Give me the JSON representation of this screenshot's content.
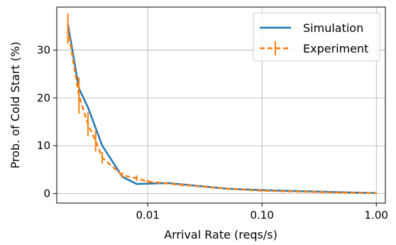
{
  "chart_data": {
    "type": "line",
    "xscale": "log",
    "xlabel": "Arrival Rate (reqs/s)",
    "ylabel": "Prob. of Cold Start (%)",
    "xlim": [
      0.0016,
      1.2
    ],
    "ylim": [
      -2,
      39
    ],
    "xticks": [
      {
        "value": 0.01,
        "label": "0.01"
      },
      {
        "value": 0.1,
        "label": "0.10"
      },
      {
        "value": 1.0,
        "label": "1.00"
      }
    ],
    "yticks": [
      {
        "value": 0,
        "label": "0"
      },
      {
        "value": 10,
        "label": "10"
      },
      {
        "value": 20,
        "label": "20"
      },
      {
        "value": 30,
        "label": "30"
      }
    ],
    "grid": true,
    "legend_position": "top-right",
    "series": [
      {
        "name": "Simulation",
        "color": "#1f77b4",
        "style": "solid",
        "x": [
          0.002,
          0.0025,
          0.003,
          0.004,
          0.006,
          0.008,
          0.015,
          0.05,
          0.1,
          1.0
        ],
        "y": [
          35.5,
          22.0,
          18.0,
          10.0,
          3.5,
          2.0,
          2.2,
          1.0,
          0.7,
          0.1
        ]
      },
      {
        "name": "Experiment",
        "color": "#ff7f0e",
        "style": "dashed",
        "x": [
          0.002,
          0.0025,
          0.003,
          0.0035,
          0.004,
          0.006,
          0.008,
          0.01,
          0.02,
          0.05,
          0.1,
          0.2,
          0.5,
          1.0
        ],
        "y": [
          34.5,
          20.5,
          14.5,
          11.0,
          7.5,
          3.8,
          3.2,
          2.5,
          1.8,
          1.0,
          0.6,
          0.4,
          0.2,
          0.1
        ],
        "yerr": [
          3.2,
          3.8,
          2.5,
          2.2,
          1.2,
          0.6,
          0.6,
          0.4,
          0.3,
          0.2,
          0.2,
          0.1,
          0.1,
          0.1
        ]
      }
    ]
  }
}
